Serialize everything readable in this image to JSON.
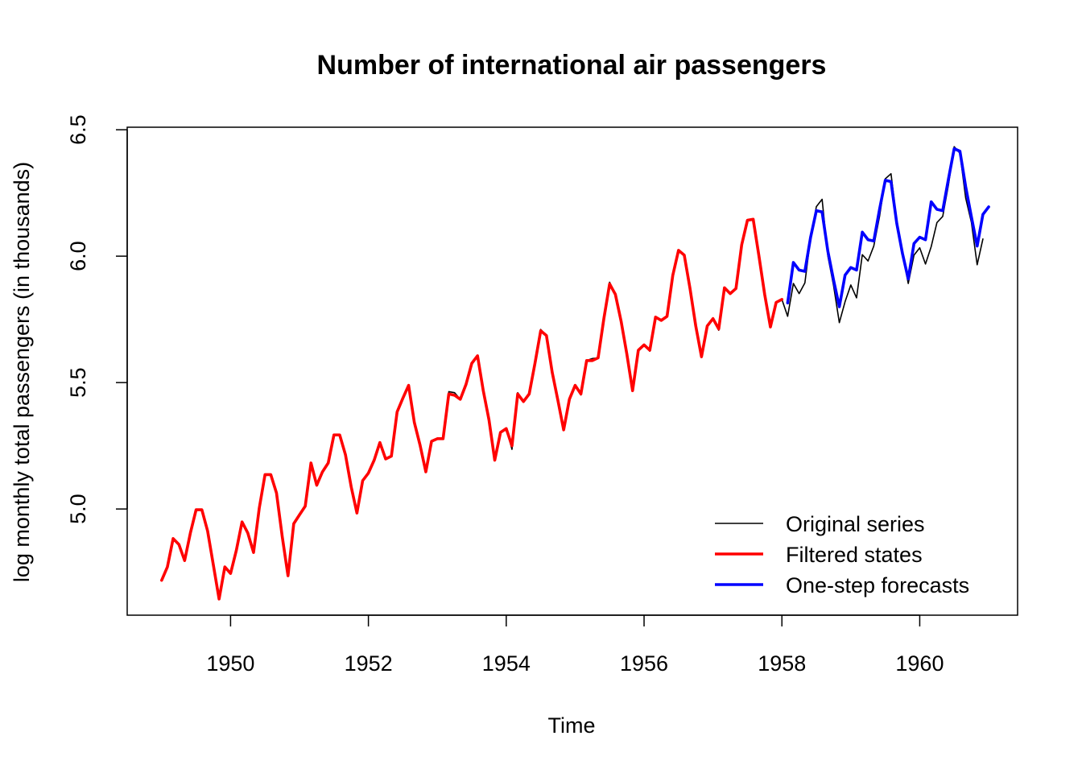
{
  "chart_data": {
    "type": "line",
    "title": "Number of international air passengers",
    "xlabel": "Time",
    "ylabel": "log monthly total passengers (in thousands)",
    "xlim": [
      1948.5,
      1961.42
    ],
    "ylim": [
      4.58,
      6.51
    ],
    "x_ticks": [
      1950,
      1952,
      1954,
      1956,
      1958,
      1960
    ],
    "x_tick_labels": [
      "1950",
      "1952",
      "1954",
      "1956",
      "1958",
      "1960"
    ],
    "y_ticks": [
      5.0,
      5.5,
      6.0,
      6.5
    ],
    "y_tick_labels": [
      "5.0",
      "5.5",
      "6.0",
      "6.5"
    ],
    "x_start": 1949.0,
    "x_step": 0.08333333,
    "grid": false,
    "legend_position": "bottom-right",
    "series": [
      {
        "name": "Original series",
        "color": "#000000",
        "start_index": 0,
        "values": [
          4.718,
          4.771,
          4.883,
          4.86,
          4.796,
          4.905,
          4.997,
          4.997,
          4.913,
          4.779,
          4.644,
          4.771,
          4.745,
          4.836,
          4.949,
          4.905,
          4.828,
          5.004,
          5.136,
          5.136,
          5.063,
          4.89,
          4.736,
          4.942,
          4.977,
          5.011,
          5.182,
          5.094,
          5.147,
          5.182,
          5.293,
          5.293,
          5.215,
          5.088,
          4.984,
          5.112,
          5.142,
          5.193,
          5.263,
          5.198,
          5.209,
          5.384,
          5.438,
          5.489,
          5.342,
          5.252,
          5.147,
          5.268,
          5.278,
          5.278,
          5.464,
          5.46,
          5.434,
          5.493,
          5.576,
          5.606,
          5.468,
          5.352,
          5.193,
          5.303,
          5.318,
          5.236,
          5.46,
          5.425,
          5.455,
          5.576,
          5.71,
          5.686,
          5.541,
          5.429,
          5.313,
          5.434,
          5.489,
          5.451,
          5.587,
          5.595,
          5.598,
          5.753,
          5.897,
          5.849,
          5.743,
          5.613,
          5.468,
          5.628,
          5.649,
          5.624,
          5.759,
          5.746,
          5.762,
          5.924,
          6.023,
          6.004,
          5.872,
          5.724,
          5.602,
          5.724,
          5.753,
          5.707,
          5.875,
          5.852,
          5.872,
          6.045,
          6.142,
          6.146,
          6.001,
          5.849,
          5.72,
          5.817,
          5.829,
          5.762,
          5.892,
          5.852,
          5.894,
          6.075,
          6.196,
          6.225,
          6.001,
          5.883,
          5.737,
          5.82,
          5.886,
          5.835,
          6.006,
          5.981,
          6.04,
          6.157,
          6.306,
          6.326,
          6.138,
          6.009,
          5.892,
          6.004,
          6.033,
          5.969,
          6.038,
          6.133,
          6.157,
          6.282,
          6.433,
          6.407,
          6.23,
          6.133,
          5.966,
          6.068
        ]
      },
      {
        "name": "Filtered states",
        "color": "#ff0000",
        "start_index": 0,
        "values": [
          4.718,
          4.771,
          4.883,
          4.86,
          4.796,
          4.905,
          4.997,
          4.997,
          4.913,
          4.779,
          4.644,
          4.771,
          4.745,
          4.836,
          4.949,
          4.905,
          4.828,
          5.004,
          5.136,
          5.136,
          5.063,
          4.89,
          4.736,
          4.942,
          4.977,
          5.011,
          5.182,
          5.094,
          5.147,
          5.182,
          5.293,
          5.293,
          5.215,
          5.088,
          4.984,
          5.112,
          5.142,
          5.193,
          5.263,
          5.198,
          5.209,
          5.384,
          5.438,
          5.489,
          5.342,
          5.252,
          5.147,
          5.268,
          5.278,
          5.278,
          5.455,
          5.45,
          5.434,
          5.493,
          5.576,
          5.606,
          5.468,
          5.352,
          5.193,
          5.303,
          5.318,
          5.25,
          5.455,
          5.425,
          5.455,
          5.576,
          5.705,
          5.686,
          5.541,
          5.429,
          5.313,
          5.434,
          5.489,
          5.455,
          5.587,
          5.587,
          5.598,
          5.753,
          5.89,
          5.849,
          5.743,
          5.613,
          5.468,
          5.628,
          5.649,
          5.628,
          5.759,
          5.746,
          5.762,
          5.924,
          6.023,
          6.004,
          5.872,
          5.724,
          5.602,
          5.724,
          5.753,
          5.712,
          5.875,
          5.852,
          5.872,
          6.045,
          6.142,
          6.146,
          6.001,
          5.849,
          5.72,
          5.817,
          5.829
        ]
      },
      {
        "name": "One-step forecasts",
        "color": "#0000ff",
        "start_index": 109,
        "values": [
          5.815,
          5.975,
          5.945,
          5.94,
          6.075,
          6.18,
          6.175,
          6.02,
          5.905,
          5.8,
          5.925,
          5.955,
          5.945,
          6.095,
          6.065,
          6.06,
          6.185,
          6.3,
          6.295,
          6.13,
          6.01,
          5.91,
          6.05,
          6.075,
          6.065,
          6.215,
          6.185,
          6.18,
          6.305,
          6.425,
          6.415,
          6.275,
          6.155,
          6.04,
          6.165,
          6.195
        ]
      }
    ]
  }
}
